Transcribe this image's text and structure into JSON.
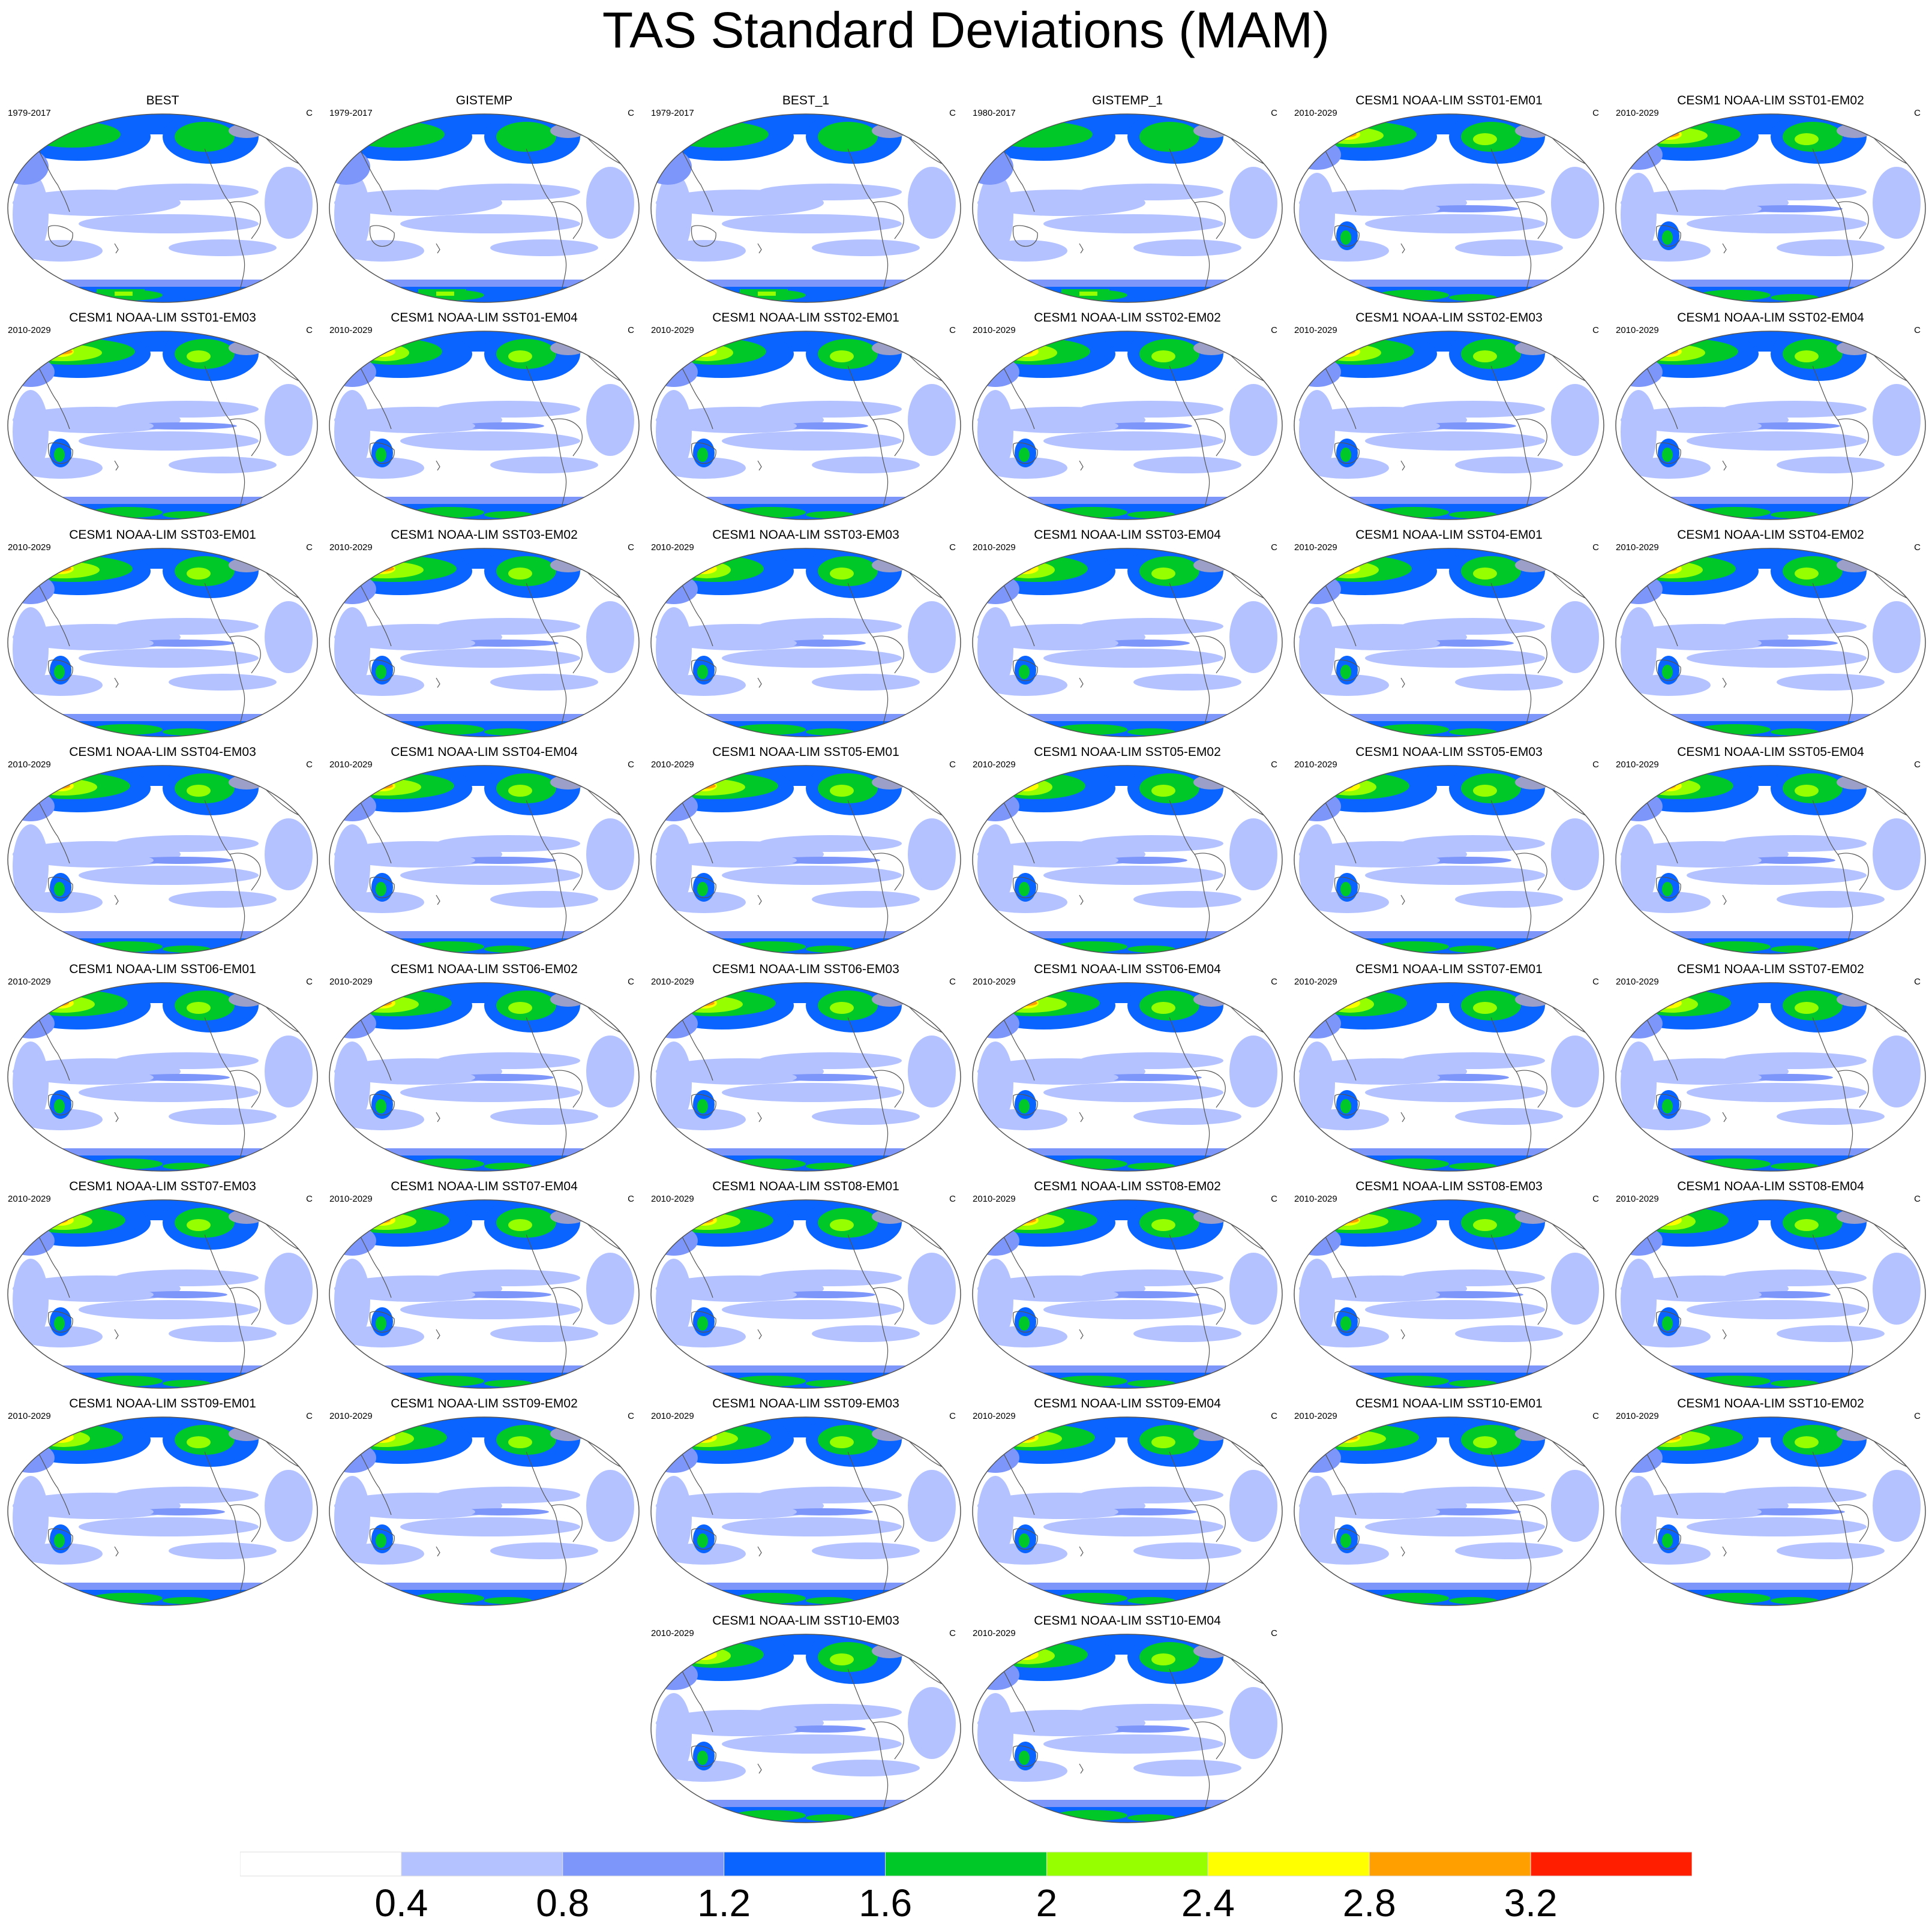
{
  "title": "TAS Standard Deviations (MAM)",
  "units": "C",
  "panels": [
    {
      "title": "BEST",
      "period": "1979-2017",
      "units": "C",
      "pattern": "obs"
    },
    {
      "title": "GISTEMP",
      "period": "1979-2017",
      "units": "C",
      "pattern": "obs"
    },
    {
      "title": "BEST_1",
      "period": "1979-2017",
      "units": "C",
      "pattern": "obs"
    },
    {
      "title": "GISTEMP_1",
      "period": "1980-2017",
      "units": "C",
      "pattern": "obs"
    },
    {
      "title": "CESM1 NOAA-LIM SST01-EM01",
      "period": "2010-2029",
      "units": "C",
      "pattern": "model"
    },
    {
      "title": "CESM1 NOAA-LIM SST01-EM02",
      "period": "2010-2029",
      "units": "C",
      "pattern": "model"
    },
    {
      "title": "CESM1 NOAA-LIM SST01-EM03",
      "period": "2010-2029",
      "units": "C",
      "pattern": "model"
    },
    {
      "title": "CESM1 NOAA-LIM SST01-EM04",
      "period": "2010-2029",
      "units": "C",
      "pattern": "model"
    },
    {
      "title": "CESM1 NOAA-LIM SST02-EM01",
      "period": "2010-2029",
      "units": "C",
      "pattern": "model"
    },
    {
      "title": "CESM1 NOAA-LIM SST02-EM02",
      "period": "2010-2029",
      "units": "C",
      "pattern": "model"
    },
    {
      "title": "CESM1 NOAA-LIM SST02-EM03",
      "period": "2010-2029",
      "units": "C",
      "pattern": "model"
    },
    {
      "title": "CESM1 NOAA-LIM SST02-EM04",
      "period": "2010-2029",
      "units": "C",
      "pattern": "model"
    },
    {
      "title": "CESM1 NOAA-LIM SST03-EM01",
      "period": "2010-2029",
      "units": "C",
      "pattern": "model"
    },
    {
      "title": "CESM1 NOAA-LIM SST03-EM02",
      "period": "2010-2029",
      "units": "C",
      "pattern": "model"
    },
    {
      "title": "CESM1 NOAA-LIM SST03-EM03",
      "period": "2010-2029",
      "units": "C",
      "pattern": "model"
    },
    {
      "title": "CESM1 NOAA-LIM SST03-EM04",
      "period": "2010-2029",
      "units": "C",
      "pattern": "model"
    },
    {
      "title": "CESM1 NOAA-LIM SST04-EM01",
      "period": "2010-2029",
      "units": "C",
      "pattern": "model"
    },
    {
      "title": "CESM1 NOAA-LIM SST04-EM02",
      "period": "2010-2029",
      "units": "C",
      "pattern": "model"
    },
    {
      "title": "CESM1 NOAA-LIM SST04-EM03",
      "period": "2010-2029",
      "units": "C",
      "pattern": "model"
    },
    {
      "title": "CESM1 NOAA-LIM SST04-EM04",
      "period": "2010-2029",
      "units": "C",
      "pattern": "model"
    },
    {
      "title": "CESM1 NOAA-LIM SST05-EM01",
      "period": "2010-2029",
      "units": "C",
      "pattern": "model"
    },
    {
      "title": "CESM1 NOAA-LIM SST05-EM02",
      "period": "2010-2029",
      "units": "C",
      "pattern": "model"
    },
    {
      "title": "CESM1 NOAA-LIM SST05-EM03",
      "period": "2010-2029",
      "units": "C",
      "pattern": "model"
    },
    {
      "title": "CESM1 NOAA-LIM SST05-EM04",
      "period": "2010-2029",
      "units": "C",
      "pattern": "model"
    },
    {
      "title": "CESM1 NOAA-LIM SST06-EM01",
      "period": "2010-2029",
      "units": "C",
      "pattern": "model"
    },
    {
      "title": "CESM1 NOAA-LIM SST06-EM02",
      "period": "2010-2029",
      "units": "C",
      "pattern": "model"
    },
    {
      "title": "CESM1 NOAA-LIM SST06-EM03",
      "period": "2010-2029",
      "units": "C",
      "pattern": "model"
    },
    {
      "title": "CESM1 NOAA-LIM SST06-EM04",
      "period": "2010-2029",
      "units": "C",
      "pattern": "model"
    },
    {
      "title": "CESM1 NOAA-LIM SST07-EM01",
      "period": "2010-2029",
      "units": "C",
      "pattern": "model"
    },
    {
      "title": "CESM1 NOAA-LIM SST07-EM02",
      "period": "2010-2029",
      "units": "C",
      "pattern": "model"
    },
    {
      "title": "CESM1 NOAA-LIM SST07-EM03",
      "period": "2010-2029",
      "units": "C",
      "pattern": "model"
    },
    {
      "title": "CESM1 NOAA-LIM SST07-EM04",
      "period": "2010-2029",
      "units": "C",
      "pattern": "model"
    },
    {
      "title": "CESM1 NOAA-LIM SST08-EM01",
      "period": "2010-2029",
      "units": "C",
      "pattern": "model"
    },
    {
      "title": "CESM1 NOAA-LIM SST08-EM02",
      "period": "2010-2029",
      "units": "C",
      "pattern": "model"
    },
    {
      "title": "CESM1 NOAA-LIM SST08-EM03",
      "period": "2010-2029",
      "units": "C",
      "pattern": "model"
    },
    {
      "title": "CESM1 NOAA-LIM SST08-EM04",
      "period": "2010-2029",
      "units": "C",
      "pattern": "model"
    },
    {
      "title": "CESM1 NOAA-LIM SST09-EM01",
      "period": "2010-2029",
      "units": "C",
      "pattern": "model"
    },
    {
      "title": "CESM1 NOAA-LIM SST09-EM02",
      "period": "2010-2029",
      "units": "C",
      "pattern": "model"
    },
    {
      "title": "CESM1 NOAA-LIM SST09-EM03",
      "period": "2010-2029",
      "units": "C",
      "pattern": "model"
    },
    {
      "title": "CESM1 NOAA-LIM SST09-EM04",
      "period": "2010-2029",
      "units": "C",
      "pattern": "model"
    },
    {
      "title": "CESM1 NOAA-LIM SST10-EM01",
      "period": "2010-2029",
      "units": "C",
      "pattern": "model"
    },
    {
      "title": "CESM1 NOAA-LIM SST10-EM02",
      "period": "2010-2029",
      "units": "C",
      "pattern": "model"
    },
    {
      "title": "CESM1 NOAA-LIM SST10-EM03",
      "period": "2010-2029",
      "units": "C",
      "pattern": "model"
    },
    {
      "title": "CESM1 NOAA-LIM SST10-EM04",
      "period": "2010-2029",
      "units": "C",
      "pattern": "model"
    }
  ],
  "colorbar": {
    "levels": [
      "0.4",
      "0.8",
      "1.2",
      "1.6",
      "2",
      "2.4",
      "2.8",
      "3.2"
    ],
    "colors": [
      "#ffffff",
      "#b4c3ff",
      "#7d96fa",
      "#0a64ff",
      "#00c828",
      "#96ff00",
      "#ffff00",
      "#ffa000",
      "#ff1e00"
    ]
  },
  "chart_data": {
    "type": "heatmap",
    "title": "TAS Standard Deviations (MAM)",
    "units": "C",
    "contour_levels": [
      0.4,
      0.8,
      1.2,
      1.6,
      2,
      2.4,
      2.8,
      3.2
    ],
    "panel_count": 44,
    "layout": "6 columns x 8 rows, last row centered with 2 panels",
    "projection": "Robinson, global, Pacific-centered"
  }
}
